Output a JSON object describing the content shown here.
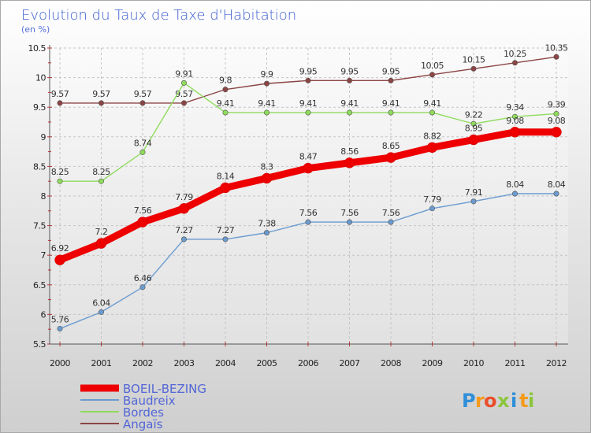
{
  "chart_data": {
    "type": "line",
    "title": "Evolution du Taux de Taxe d'Habitation",
    "subtitle": "(en %)",
    "x": [
      2000,
      2001,
      2002,
      2003,
      2004,
      2005,
      2006,
      2007,
      2008,
      2009,
      2010,
      2011,
      2012
    ],
    "ylim": [
      5.5,
      10.5
    ],
    "yticks": [
      "10.5",
      "10",
      "9.5",
      "9",
      "8.5",
      "8",
      "7.5",
      "7",
      "6.5",
      "6",
      "5.5"
    ],
    "grid": true,
    "legend_position": "bottom-left",
    "series": [
      {
        "name": "BOEIL-BEZING",
        "color": "#ee0000",
        "emphasis": true,
        "values": [
          6.92,
          7.2,
          7.56,
          7.79,
          8.14,
          8.3,
          8.47,
          8.56,
          8.65,
          8.82,
          8.95,
          9.08,
          9.08
        ],
        "labels": [
          "6.92",
          "7.2",
          "7.56",
          "7.79",
          "8.14",
          "8.3",
          "8.47",
          "8.56",
          "8.65",
          "8.82",
          "8.95",
          "9.08",
          "9.08"
        ]
      },
      {
        "name": "Baudreix",
        "color": "#6b9bd0",
        "values": [
          5.76,
          6.04,
          6.46,
          7.27,
          7.27,
          7.38,
          7.56,
          7.56,
          7.56,
          7.79,
          7.91,
          8.04,
          8.04
        ],
        "labels": [
          "5.76",
          "6.04",
          "6.46",
          "7.27",
          "7.27",
          "7.38",
          "7.56",
          "7.56",
          "7.56",
          "7.79",
          "7.91",
          "8.04",
          "8.04"
        ]
      },
      {
        "name": "Bordes",
        "color": "#8fdc5c",
        "values": [
          8.25,
          8.25,
          8.74,
          9.91,
          9.41,
          9.41,
          9.41,
          9.41,
          9.41,
          9.41,
          9.22,
          9.34,
          9.39
        ],
        "labels": [
          "8.25",
          "8.25",
          "8.74",
          "9.91",
          "9.41",
          "9.41",
          "9.41",
          "9.41",
          "9.41",
          "9.41",
          "9.22",
          "9.34",
          "9.39"
        ]
      },
      {
        "name": "Angaïs",
        "color": "#8c4444",
        "values": [
          9.57,
          9.57,
          9.57,
          9.57,
          9.8,
          9.9,
          9.95,
          9.95,
          9.95,
          10.05,
          10.15,
          10.25,
          10.35
        ],
        "labels": [
          "9.57",
          "9.57",
          "9.57",
          "9.57",
          "9.8",
          "9.9",
          "9.95",
          "9.95",
          "9.95",
          "10.05",
          "10.15",
          "10.25",
          "10.35"
        ]
      }
    ]
  },
  "logo": {
    "letters": [
      "P",
      "r",
      "o",
      "x",
      "i",
      "t",
      "i"
    ],
    "colors": [
      "#2f8fd8",
      "#f59a1a",
      "#e94e2a",
      "#8cc63f",
      "#2f8fd8",
      "#f59a1a",
      "#8cc63f"
    ]
  }
}
